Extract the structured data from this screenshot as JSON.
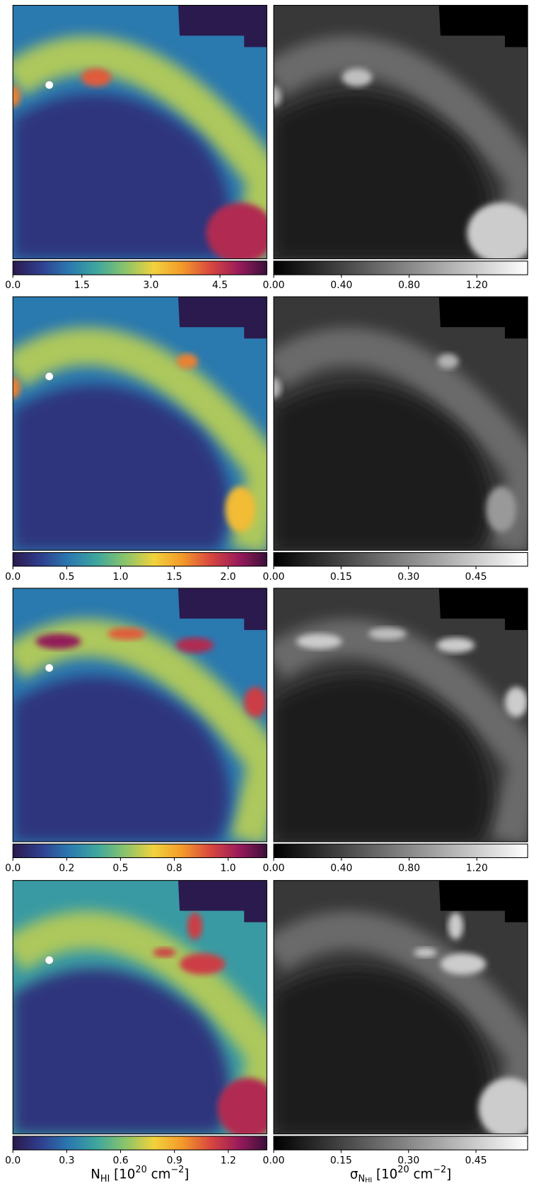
{
  "chart_data": [
    {
      "type": "image",
      "colors": [
        "#2b1a4e",
        "#2f3f8f",
        "#2a7ab0",
        "#3fa79d",
        "#8cc46a",
        "#f2d23c",
        "#f39a2a",
        "#d9473f",
        "#9a1b5b",
        "#3b0f3b"
      ],
      "xlim": [
        0,
        5.52
      ],
      "xticks": [
        {
          "value": 0,
          "label": "0.0"
        },
        1.5,
        {
          "value": 3,
          "label": "3.0"
        },
        4.5
      ]
    },
    {
      "type": "image",
      "colors": [
        "#000000",
        "#ffffff"
      ],
      "xlim": [
        0,
        1.5
      ],
      "xticks": [
        {
          "value": 0,
          "label": "0.00"
        },
        {
          "value": 0.4,
          "label": "0.40"
        },
        {
          "value": 0.8,
          "label": "0.80"
        },
        {
          "value": 1.2,
          "label": "1.20"
        }
      ]
    },
    {
      "type": "image",
      "colors": [
        "#2b1a4e",
        "#2f3f8f",
        "#2a7ab0",
        "#3fa79d",
        "#8cc46a",
        "#f2d23c",
        "#f39a2a",
        "#d9473f",
        "#9a1b5b",
        "#3b0f3b"
      ],
      "xlim": [
        0,
        2.36
      ],
      "xticks": [
        {
          "value": 0,
          "label": "0.0"
        },
        0.5,
        {
          "value": 1,
          "label": "1.0"
        },
        1.5,
        {
          "value": 2,
          "label": "2.0"
        }
      ]
    },
    {
      "type": "image",
      "colors": [
        "#000000",
        "#ffffff"
      ],
      "xlim": [
        0,
        0.565
      ],
      "xticks": [
        {
          "value": 0,
          "label": "0.00"
        },
        0.15,
        {
          "value": 0.3,
          "label": "0.30"
        },
        0.45
      ]
    },
    {
      "type": "image",
      "colors": [
        "#2b1a4e",
        "#2f3f8f",
        "#2a7ab0",
        "#3fa79d",
        "#8cc46a",
        "#f2d23c",
        "#f39a2a",
        "#d9473f",
        "#9a1b5b",
        "#3b0f3b"
      ],
      "xlim": [
        0,
        1.18
      ],
      "xticks": [
        {
          "value": 0,
          "label": "0.0"
        },
        {
          "value": 0.25,
          "label": "0.2"
        },
        0.5,
        {
          "value": 0.75,
          "label": "0.8"
        },
        {
          "value": 1,
          "label": "1.0"
        }
      ]
    },
    {
      "type": "image",
      "colors": [
        "#000000",
        "#ffffff"
      ],
      "xlim": [
        0,
        1.5
      ],
      "xticks": [
        {
          "value": 0,
          "label": "0.00"
        },
        {
          "value": 0.4,
          "label": "0.40"
        },
        {
          "value": 0.8,
          "label": "0.80"
        },
        {
          "value": 1.2,
          "label": "1.20"
        }
      ]
    },
    {
      "type": "image",
      "colors": [
        "#2b1a4e",
        "#2f3f8f",
        "#2a7ab0",
        "#3fa79d",
        "#8cc46a",
        "#f2d23c",
        "#f39a2a",
        "#d9473f",
        "#9a1b5b",
        "#3b0f3b"
      ],
      "xlim": [
        0,
        1.415
      ],
      "xticks": [
        {
          "value": 0,
          "label": "0.0"
        },
        0.3,
        0.6,
        0.9,
        1.2
      ],
      "xlabel": [
        {
          "text": "N"
        },
        {
          "text": "HI",
          "shift": "sub"
        },
        {
          "text": " [10"
        },
        {
          "text": "20",
          "shift": "super"
        },
        {
          "text": " cm"
        },
        {
          "text": "−2",
          "shift": "super"
        },
        {
          "text": "]"
        }
      ]
    },
    {
      "type": "image",
      "colors": [
        "#000000",
        "#ffffff"
      ],
      "xlim": [
        0,
        0.565
      ],
      "xticks": [
        {
          "value": 0,
          "label": "0.00"
        },
        0.15,
        {
          "value": 0.3,
          "label": "0.30"
        },
        0.45
      ],
      "xlabel": [
        {
          "text": "σ"
        },
        {
          "text": "N",
          "shift": "sub"
        },
        {
          "text": "HI",
          "shift": "subsub"
        },
        {
          "text": " [10"
        },
        {
          "text": "20",
          "shift": "super"
        },
        {
          "text": " cm"
        },
        {
          "text": "−2",
          "shift": "super"
        },
        {
          "text": "]"
        }
      ]
    }
  ]
}
